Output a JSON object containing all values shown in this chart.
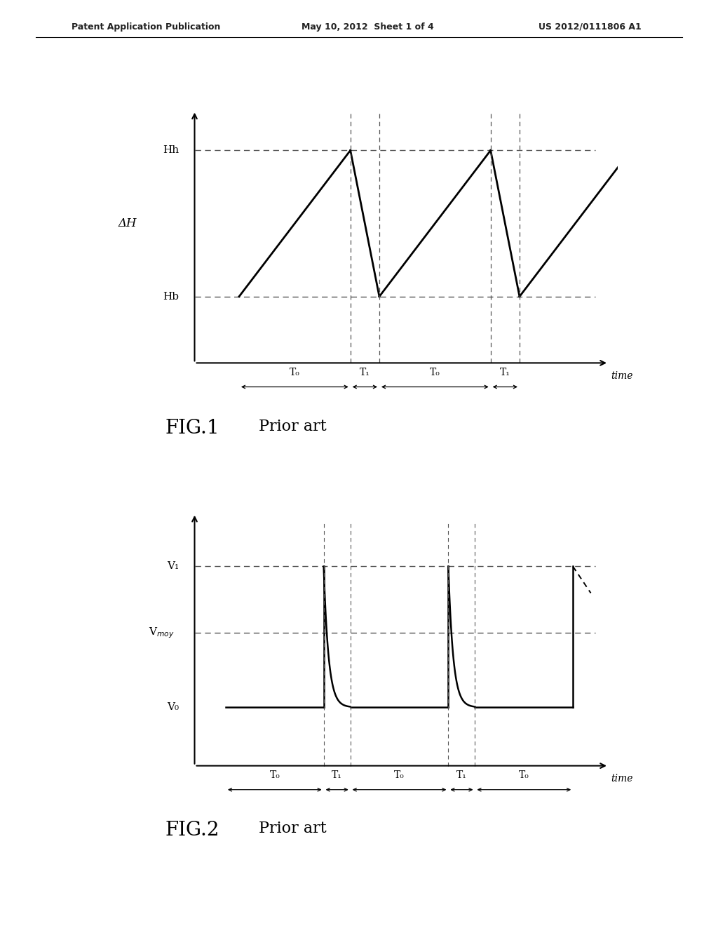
{
  "bg_color": "#ffffff",
  "header_left": "Patent Application Publication",
  "header_center": "May 10, 2012  Sheet 1 of 4",
  "header_right": "US 2012/0111806 A1",
  "fig1_caption": "FIG.1",
  "fig1_sub": "Prior art",
  "fig2_caption": "FIG.2",
  "fig2_sub": "Prior art",
  "fig1": {
    "Hh": 0.8,
    "Hb": 0.28,
    "dH_label": "ΔH",
    "T0_label": "T₀",
    "T1_label": "T₁",
    "time_label": "time",
    "Hh_label": "Hh",
    "Hb_label": "Hb"
  },
  "fig2": {
    "V1": 0.75,
    "Vmoy": 0.5,
    "V0": 0.22,
    "V1_label": "V₁",
    "Vmoy_label": "Vₘₒʏ",
    "V0_label": "V₀",
    "T0_label": "T₀",
    "T1_label": "T₁",
    "time_label": "time"
  }
}
